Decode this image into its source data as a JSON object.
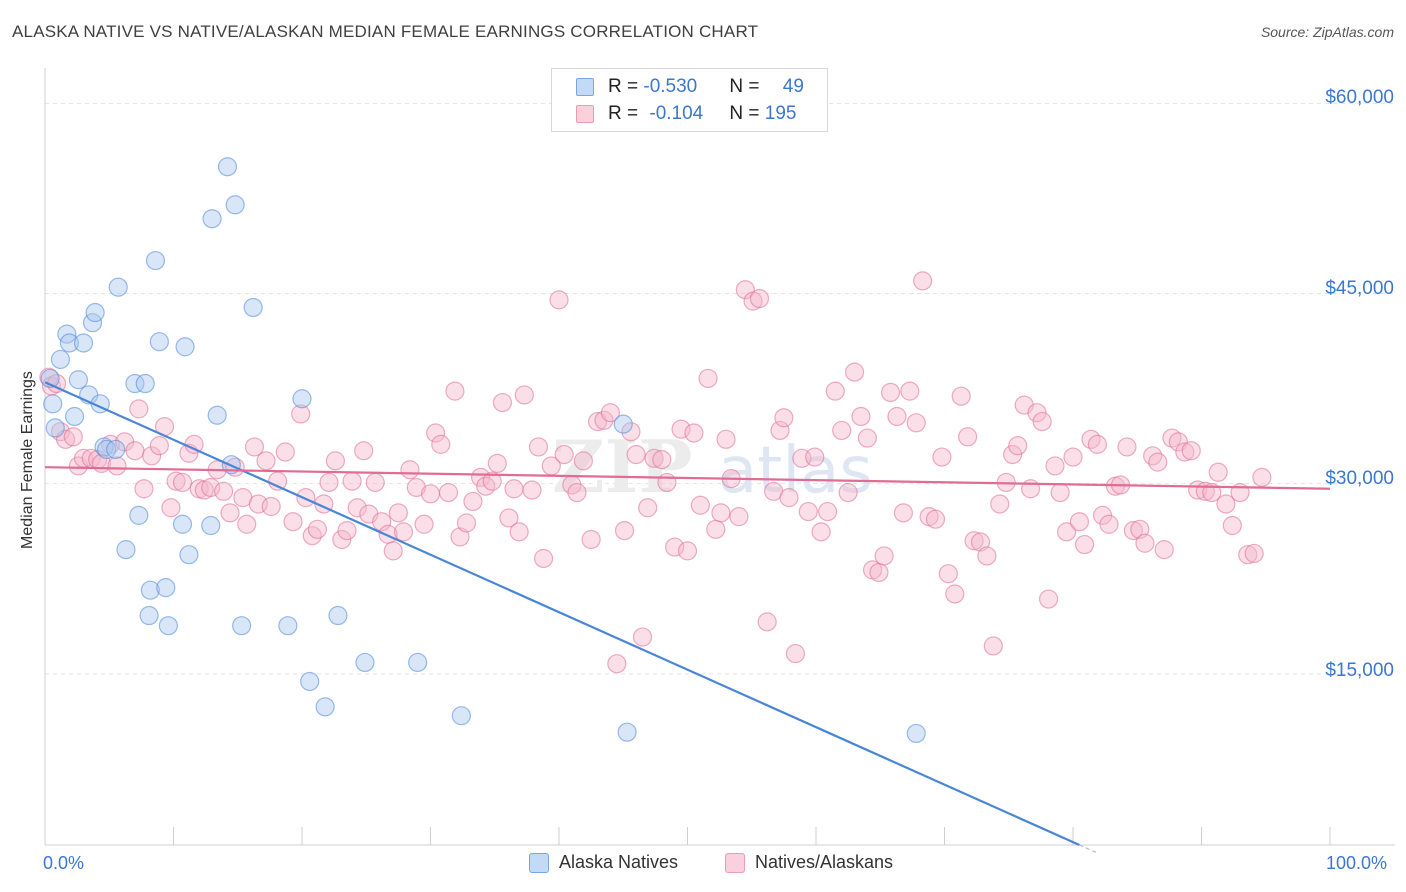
{
  "title": "ALASKA NATIVE VS NATIVE/ALASKAN MEDIAN FEMALE EARNINGS CORRELATION CHART",
  "source": "Source: ZipAtlas.com",
  "watermark": "ZIPatlas",
  "legend": {
    "rows": [
      {
        "r_label": "R = ",
        "r_value": "-0.530",
        "n_label": "N = ",
        "n_value": "49",
        "color": "#a8c8f0"
      },
      {
        "r_label": "R = ",
        "r_value": "-0.104",
        "n_label": "N = ",
        "n_value": "195",
        "color": "#f5b8cb"
      }
    ]
  },
  "bottom_legend": {
    "items": [
      {
        "label": "Alaska Natives",
        "color": "#a8c8f0"
      },
      {
        "label": "Natives/Alaskans",
        "color": "#f5b8cb"
      }
    ]
  },
  "axis": {
    "x_min_label": "0.0%",
    "x_max_label": "100.0%",
    "y_tick_labels": [
      "$60,000",
      "$45,000",
      "$30,000",
      "$15,000"
    ],
    "ylabel": "Median Female Earnings"
  },
  "chart_data": {
    "type": "scatter",
    "xlim": [
      0,
      100
    ],
    "ylim": [
      1500,
      62000
    ],
    "y_ticks": [
      60000,
      45000,
      30000,
      15000
    ],
    "grid": "horizontal dashed",
    "series": [
      {
        "name": "Alaska Natives",
        "color": "#4a86d8",
        "fill": "#a8c8f0",
        "trend": {
          "x0": 0,
          "y0": 38000,
          "x1": 80.5,
          "y1": 1500,
          "dash_to_x": 82
        },
        "points": [
          [
            0.4,
            38300
          ],
          [
            0.6,
            36300
          ],
          [
            0.8,
            34400
          ],
          [
            1.2,
            39800
          ],
          [
            1.7,
            41800
          ],
          [
            1.9,
            41100
          ],
          [
            2.3,
            35300
          ],
          [
            2.6,
            38200
          ],
          [
            3.0,
            41100
          ],
          [
            3.4,
            37000
          ],
          [
            3.7,
            42700
          ],
          [
            3.9,
            43500
          ],
          [
            4.3,
            36300
          ],
          [
            4.6,
            32900
          ],
          [
            4.8,
            32700
          ],
          [
            5.5,
            32700
          ],
          [
            5.7,
            45500
          ],
          [
            6.3,
            24800
          ],
          [
            7.0,
            37900
          ],
          [
            7.3,
            27500
          ],
          [
            7.8,
            37900
          ],
          [
            8.1,
            19600
          ],
          [
            8.2,
            21600
          ],
          [
            8.6,
            47600
          ],
          [
            8.9,
            41200
          ],
          [
            9.4,
            21800
          ],
          [
            9.6,
            18800
          ],
          [
            10.7,
            26800
          ],
          [
            10.9,
            40800
          ],
          [
            11.2,
            24400
          ],
          [
            12.9,
            26700
          ],
          [
            13.0,
            50900
          ],
          [
            13.4,
            35400
          ],
          [
            14.2,
            55000
          ],
          [
            14.5,
            31500
          ],
          [
            14.8,
            52000
          ],
          [
            15.3,
            18800
          ],
          [
            16.2,
            43900
          ],
          [
            18.9,
            18800
          ],
          [
            20.0,
            36700
          ],
          [
            20.6,
            14400
          ],
          [
            21.8,
            12400
          ],
          [
            22.8,
            19600
          ],
          [
            24.9,
            15900
          ],
          [
            29.0,
            15900
          ],
          [
            32.4,
            11700
          ],
          [
            45.0,
            34700
          ],
          [
            45.3,
            10400
          ],
          [
            67.8,
            10300
          ]
        ]
      },
      {
        "name": "Natives/Alaskans",
        "color": "#e06c94",
        "fill": "#f5b8cb",
        "trend": {
          "x0": 0,
          "y0": 31300,
          "x1": 100,
          "y1": 29600
        },
        "points": [
          [
            0.3,
            38400
          ],
          [
            0.5,
            37700
          ],
          [
            0.9,
            37900
          ],
          [
            1.2,
            34100
          ],
          [
            1.6,
            33500
          ],
          [
            2.2,
            33700
          ],
          [
            2.6,
            31400
          ],
          [
            3.0,
            32000
          ],
          [
            3.6,
            32000
          ],
          [
            4.1,
            31900
          ],
          [
            4.4,
            31600
          ],
          [
            5.1,
            33100
          ],
          [
            5.6,
            31400
          ],
          [
            6.2,
            33300
          ],
          [
            7.0,
            32600
          ],
          [
            7.3,
            35900
          ],
          [
            7.7,
            29600
          ],
          [
            8.3,
            32200
          ],
          [
            8.9,
            33000
          ],
          [
            9.3,
            34500
          ],
          [
            9.8,
            28100
          ],
          [
            10.2,
            30200
          ],
          [
            10.7,
            30100
          ],
          [
            11.2,
            32400
          ],
          [
            11.6,
            33100
          ],
          [
            12.0,
            29600
          ],
          [
            12.4,
            29500
          ],
          [
            12.9,
            29700
          ],
          [
            13.4,
            31100
          ],
          [
            13.9,
            29400
          ],
          [
            14.4,
            27700
          ],
          [
            14.8,
            31300
          ],
          [
            15.4,
            28900
          ],
          [
            15.7,
            26800
          ],
          [
            16.3,
            32900
          ],
          [
            16.6,
            28400
          ],
          [
            17.2,
            31800
          ],
          [
            17.6,
            28200
          ],
          [
            18.1,
            30200
          ],
          [
            18.7,
            32500
          ],
          [
            19.3,
            27000
          ],
          [
            19.9,
            35500
          ],
          [
            20.3,
            28900
          ],
          [
            20.8,
            25900
          ],
          [
            21.2,
            26400
          ],
          [
            21.7,
            28400
          ],
          [
            22.1,
            30100
          ],
          [
            22.6,
            31800
          ],
          [
            23.1,
            25600
          ],
          [
            23.5,
            26300
          ],
          [
            23.9,
            30200
          ],
          [
            24.3,
            28100
          ],
          [
            24.8,
            32600
          ],
          [
            25.2,
            27600
          ],
          [
            25.7,
            30100
          ],
          [
            26.2,
            27000
          ],
          [
            26.7,
            26000
          ],
          [
            27.1,
            24700
          ],
          [
            27.5,
            27700
          ],
          [
            27.9,
            26200
          ],
          [
            28.4,
            31100
          ],
          [
            28.9,
            29700
          ],
          [
            29.5,
            26800
          ],
          [
            30.0,
            29200
          ],
          [
            30.4,
            34000
          ],
          [
            30.8,
            33100
          ],
          [
            31.4,
            29300
          ],
          [
            31.9,
            37300
          ],
          [
            32.3,
            25800
          ],
          [
            32.8,
            26900
          ],
          [
            33.3,
            28600
          ],
          [
            33.9,
            30500
          ],
          [
            34.3,
            29800
          ],
          [
            34.8,
            30200
          ],
          [
            35.2,
            31600
          ],
          [
            35.6,
            36400
          ],
          [
            36.1,
            27300
          ],
          [
            36.5,
            29600
          ],
          [
            36.9,
            26200
          ],
          [
            37.3,
            37000
          ],
          [
            37.9,
            29500
          ],
          [
            38.4,
            32900
          ],
          [
            38.8,
            24100
          ],
          [
            39.4,
            31400
          ],
          [
            40.0,
            44500
          ],
          [
            40.4,
            32300
          ],
          [
            41.0,
            29900
          ],
          [
            41.4,
            29300
          ],
          [
            41.9,
            31800
          ],
          [
            42.5,
            25600
          ],
          [
            43.0,
            34900
          ],
          [
            43.5,
            35000
          ],
          [
            44.0,
            35600
          ],
          [
            44.5,
            15800
          ],
          [
            45.1,
            26300
          ],
          [
            45.6,
            34100
          ],
          [
            46.0,
            32300
          ],
          [
            46.5,
            17900
          ],
          [
            46.9,
            28100
          ],
          [
            47.4,
            32000
          ],
          [
            48.0,
            31900
          ],
          [
            48.4,
            30100
          ],
          [
            49.0,
            25000
          ],
          [
            49.5,
            34300
          ],
          [
            50.0,
            24700
          ],
          [
            50.5,
            34000
          ],
          [
            51.0,
            28300
          ],
          [
            51.6,
            38300
          ],
          [
            52.2,
            26400
          ],
          [
            52.6,
            27700
          ],
          [
            53.0,
            33500
          ],
          [
            53.4,
            30400
          ],
          [
            54.0,
            27400
          ],
          [
            54.5,
            45300
          ],
          [
            55.1,
            44400
          ],
          [
            55.6,
            44600
          ],
          [
            56.2,
            19100
          ],
          [
            56.7,
            29400
          ],
          [
            57.2,
            34200
          ],
          [
            57.5,
            35200
          ],
          [
            57.9,
            28900
          ],
          [
            58.4,
            16600
          ],
          [
            58.9,
            32000
          ],
          [
            59.4,
            27800
          ],
          [
            59.9,
            32100
          ],
          [
            60.4,
            26200
          ],
          [
            60.9,
            27800
          ],
          [
            61.5,
            37300
          ],
          [
            62.0,
            34200
          ],
          [
            62.5,
            29300
          ],
          [
            63.0,
            38800
          ],
          [
            63.5,
            35300
          ],
          [
            64.0,
            33600
          ],
          [
            64.4,
            23200
          ],
          [
            64.9,
            23000
          ],
          [
            65.3,
            24300
          ],
          [
            65.8,
            37200
          ],
          [
            66.3,
            35300
          ],
          [
            66.8,
            27700
          ],
          [
            67.3,
            37300
          ],
          [
            67.8,
            34800
          ],
          [
            68.3,
            46000
          ],
          [
            68.8,
            27400
          ],
          [
            69.3,
            27200
          ],
          [
            69.8,
            32100
          ],
          [
            70.3,
            22900
          ],
          [
            70.8,
            21300
          ],
          [
            71.3,
            36900
          ],
          [
            71.8,
            33700
          ],
          [
            72.3,
            25500
          ],
          [
            72.8,
            25400
          ],
          [
            73.3,
            24300
          ],
          [
            73.8,
            17200
          ],
          [
            74.3,
            28400
          ],
          [
            74.8,
            30100
          ],
          [
            75.3,
            32300
          ],
          [
            75.7,
            33000
          ],
          [
            76.2,
            36200
          ],
          [
            76.7,
            29600
          ],
          [
            77.2,
            35600
          ],
          [
            77.6,
            34900
          ],
          [
            78.1,
            20900
          ],
          [
            78.6,
            31400
          ],
          [
            79.0,
            29300
          ],
          [
            79.5,
            26200
          ],
          [
            80.0,
            32100
          ],
          [
            80.5,
            27000
          ],
          [
            80.9,
            25200
          ],
          [
            81.4,
            33500
          ],
          [
            81.9,
            33100
          ],
          [
            82.3,
            27500
          ],
          [
            82.8,
            26800
          ],
          [
            83.3,
            29800
          ],
          [
            83.7,
            29900
          ],
          [
            84.2,
            32900
          ],
          [
            84.7,
            26300
          ],
          [
            85.2,
            26400
          ],
          [
            85.6,
            25300
          ],
          [
            86.2,
            32200
          ],
          [
            86.6,
            31700
          ],
          [
            87.1,
            24800
          ],
          [
            87.7,
            33600
          ],
          [
            88.2,
            33300
          ],
          [
            88.7,
            32500
          ],
          [
            89.2,
            32600
          ],
          [
            89.7,
            29500
          ],
          [
            90.3,
            29400
          ],
          [
            90.8,
            29300
          ],
          [
            91.3,
            30900
          ],
          [
            91.9,
            28400
          ],
          [
            92.4,
            26700
          ],
          [
            93.0,
            29300
          ],
          [
            93.6,
            24400
          ],
          [
            94.1,
            24500
          ],
          [
            94.7,
            30500
          ]
        ]
      }
    ]
  }
}
